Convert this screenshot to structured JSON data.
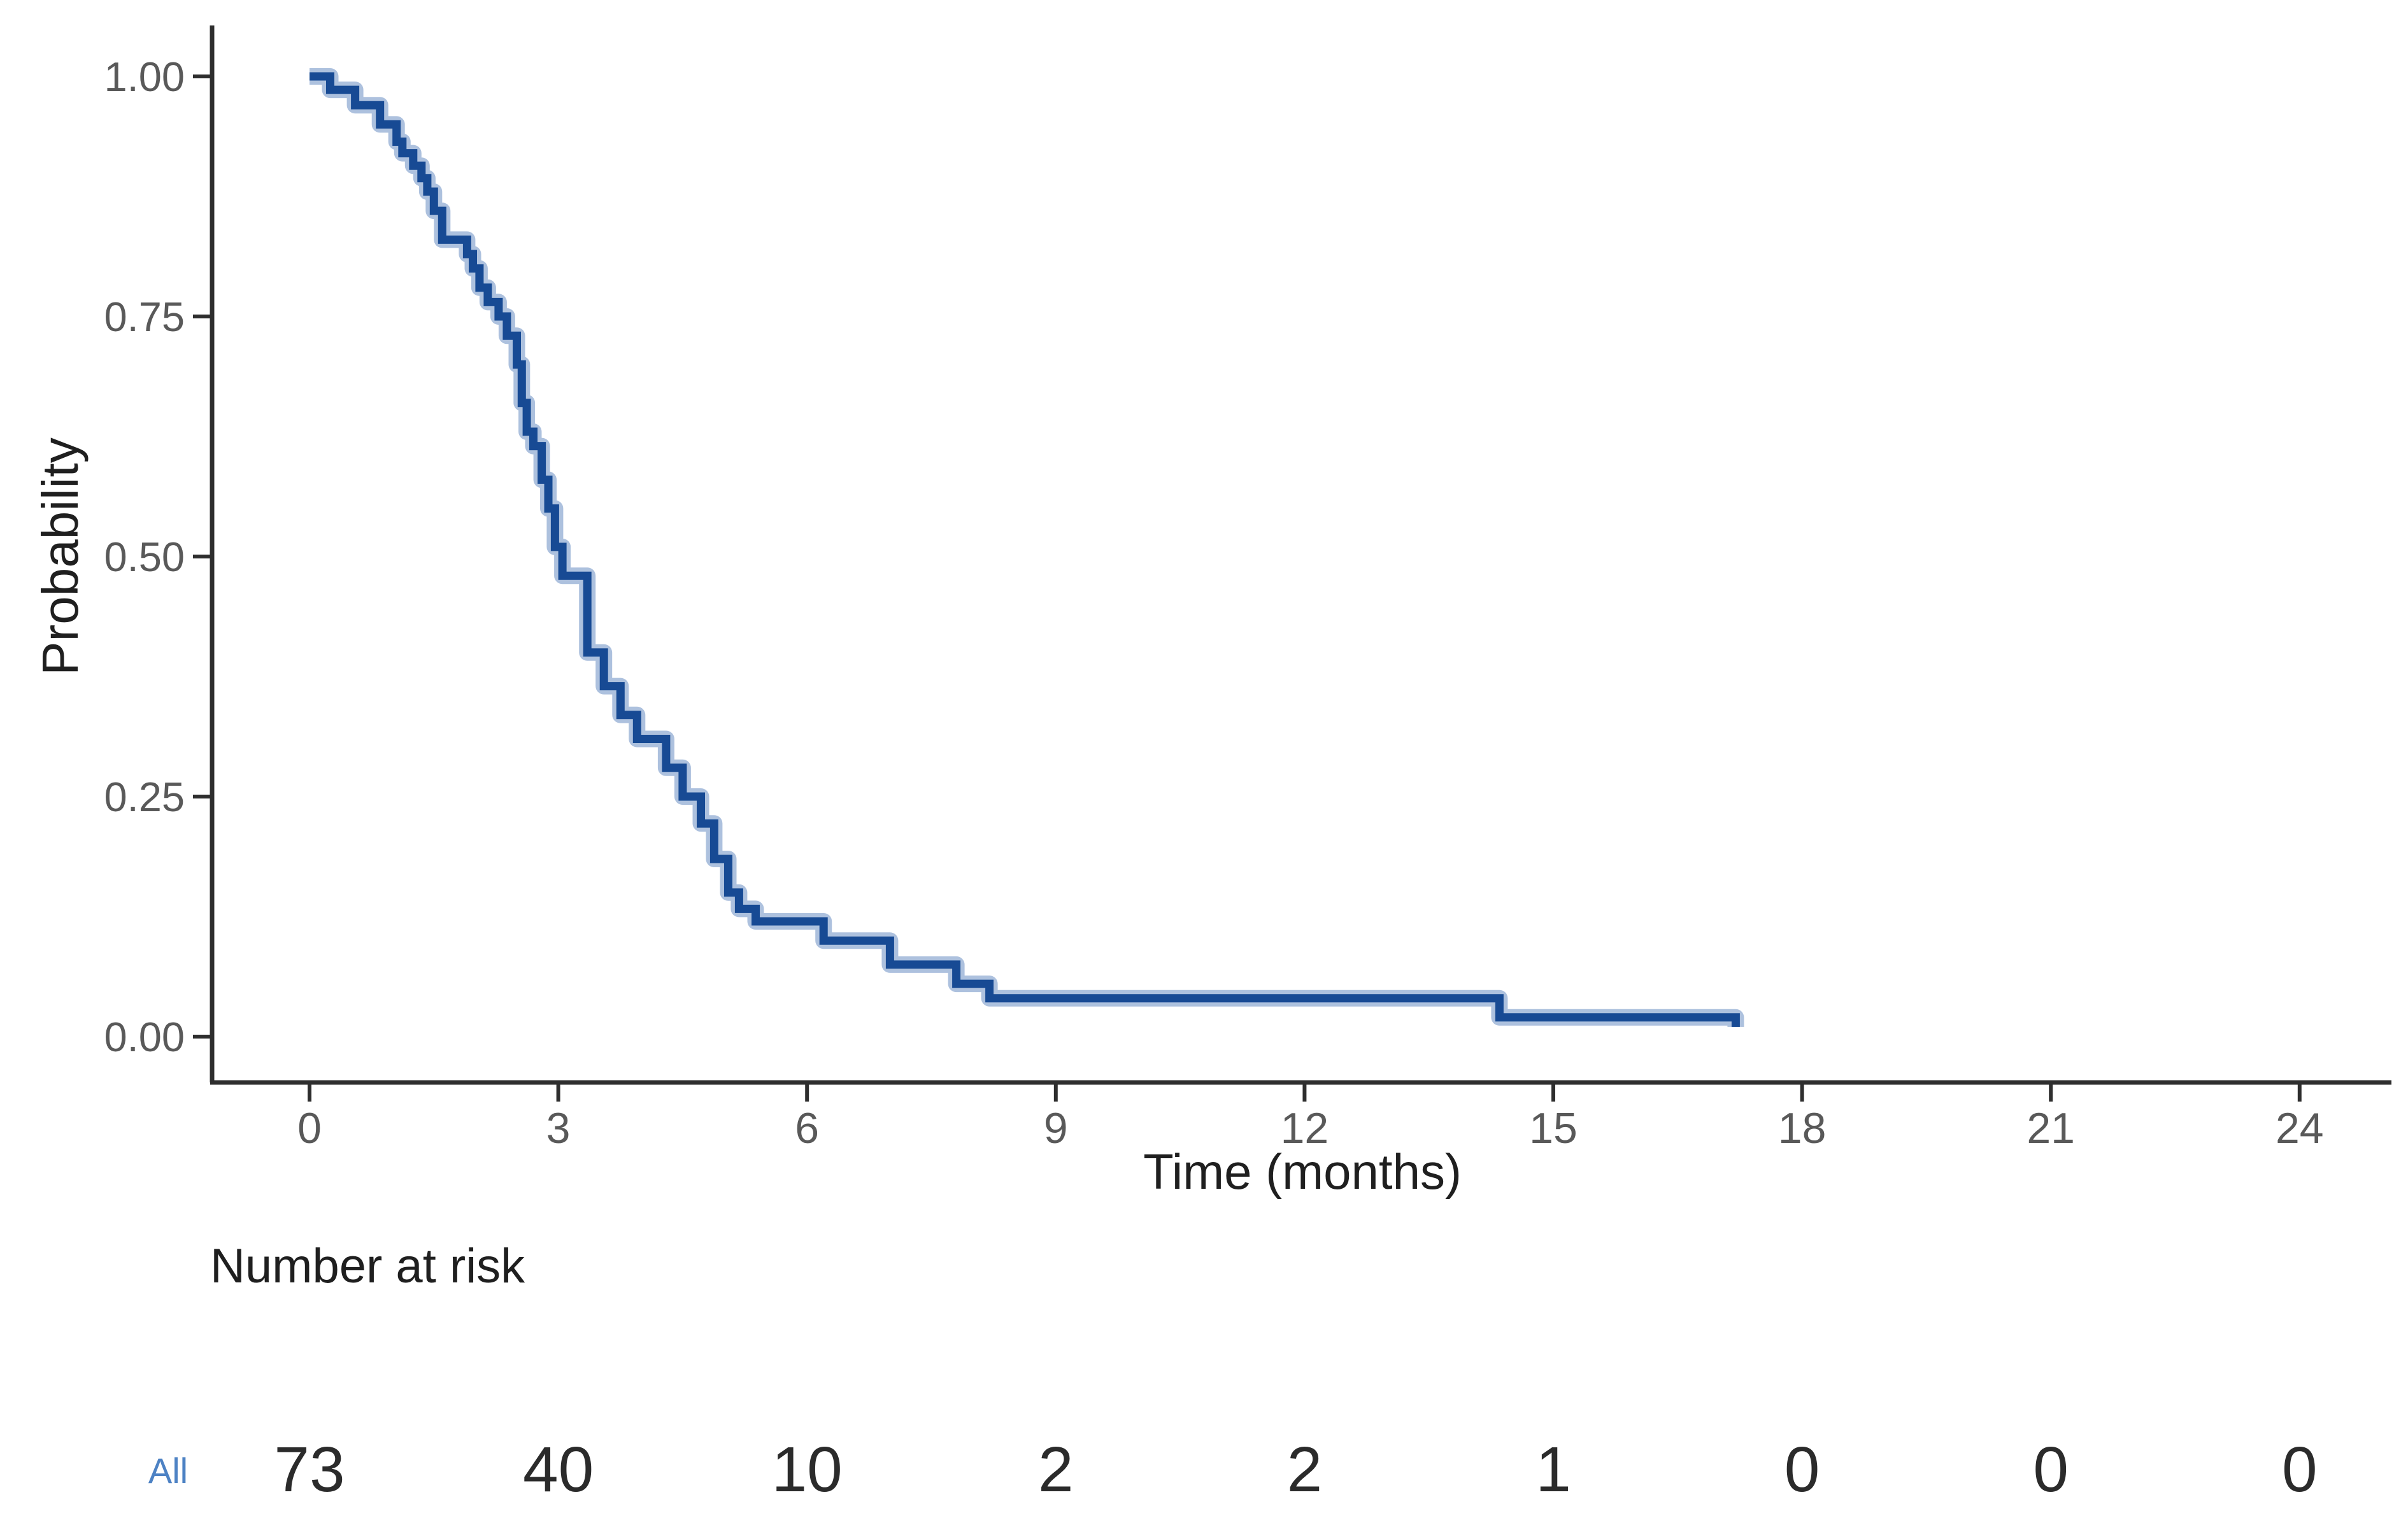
{
  "chart_data": {
    "type": "line",
    "subtype": "kaplan-meier-step",
    "xlabel": "Time (months)",
    "ylabel": "Probability",
    "xlim": [
      0,
      24
    ],
    "ylim": [
      0,
      1
    ],
    "grid": false,
    "legend_position": "none",
    "x_tick_labels": [
      "0",
      "3",
      "6",
      "9",
      "12",
      "15",
      "18",
      "21",
      "24"
    ],
    "y_tick_labels": [
      "1.00",
      "0.75",
      "0.50",
      "0.25",
      "0.00"
    ],
    "colors": {
      "curve": "#174a94",
      "curve_halo": "#adc1de",
      "axis": "#2e2e2e",
      "tick_label": "#595959",
      "axis_title": "#1f1f1f",
      "risk_label": "#4d82c4",
      "risk_value": "#2b2b2b"
    },
    "series": [
      {
        "name": "All",
        "points": [
          [
            0.0,
            1.0
          ],
          [
            0.25,
            0.986
          ],
          [
            0.55,
            0.97
          ],
          [
            0.85,
            0.95
          ],
          [
            1.05,
            0.932
          ],
          [
            1.12,
            0.92
          ],
          [
            1.25,
            0.907
          ],
          [
            1.35,
            0.894
          ],
          [
            1.42,
            0.88
          ],
          [
            1.5,
            0.86
          ],
          [
            1.6,
            0.83
          ],
          [
            1.9,
            0.815
          ],
          [
            1.97,
            0.8
          ],
          [
            2.05,
            0.78
          ],
          [
            2.15,
            0.765
          ],
          [
            2.28,
            0.75
          ],
          [
            2.38,
            0.73
          ],
          [
            2.5,
            0.7
          ],
          [
            2.56,
            0.66
          ],
          [
            2.62,
            0.63
          ],
          [
            2.7,
            0.615
          ],
          [
            2.8,
            0.58
          ],
          [
            2.88,
            0.55
          ],
          [
            2.96,
            0.51
          ],
          [
            3.05,
            0.48
          ],
          [
            3.35,
            0.4
          ],
          [
            3.55,
            0.365
          ],
          [
            3.75,
            0.335
          ],
          [
            3.95,
            0.31
          ],
          [
            4.3,
            0.28
          ],
          [
            4.5,
            0.25
          ],
          [
            4.72,
            0.222
          ],
          [
            4.88,
            0.185
          ],
          [
            5.05,
            0.15
          ],
          [
            5.18,
            0.133
          ],
          [
            5.38,
            0.12
          ],
          [
            6.2,
            0.1
          ],
          [
            7.0,
            0.075
          ],
          [
            7.8,
            0.055
          ],
          [
            8.2,
            0.04
          ],
          [
            14.35,
            0.02
          ],
          [
            17.2,
            0.01
          ]
        ]
      }
    ],
    "risk_table": {
      "title": "Number at risk",
      "time_points": [
        0,
        3,
        6,
        9,
        12,
        15,
        18,
        21,
        24
      ],
      "rows": [
        {
          "label": "All",
          "values": [
            "73",
            "40",
            "10",
            "2",
            "2",
            "1",
            "0",
            "0",
            "0"
          ]
        }
      ]
    }
  }
}
